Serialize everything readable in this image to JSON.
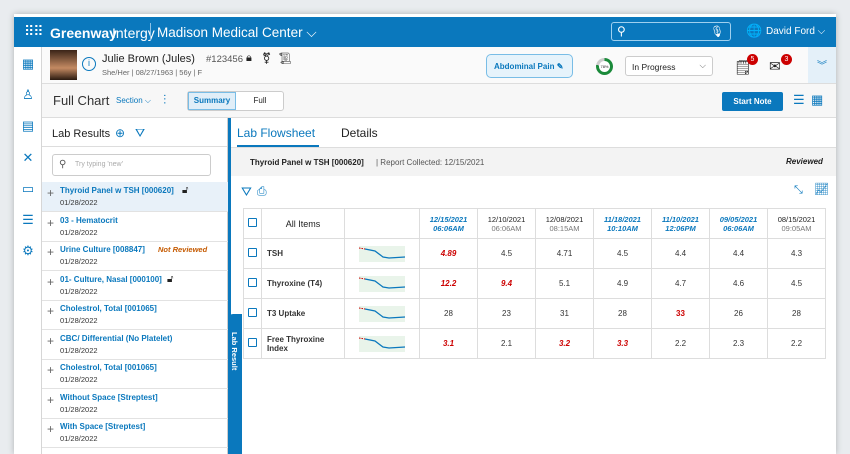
{
  "topbar": {
    "brand_bold": "Greenway",
    "brand_light": "Intergy",
    "practice": "Madison Medical Center",
    "user": "David Ford"
  },
  "patient": {
    "name": "Julie Brown (Jules)",
    "id": "#123456",
    "details": "She/Her | 08/27/1963 | 56y | F",
    "complaint": "Abdominal Pain",
    "progress": "78%",
    "status": "In Progress",
    "notes_badge": "5",
    "messages_badge": "3"
  },
  "toolbar": {
    "title": "Full Chart",
    "section": "Section",
    "summary": "Summary",
    "full": "Full",
    "start_note": "Start Note"
  },
  "left": {
    "title": "Lab Results",
    "search_placeholder": "Try typing 'new'",
    "items": [
      {
        "title": "Thyroid Panel w TSH [000620]",
        "date": "01/28/2022",
        "lock": true
      },
      {
        "title": "03 - Hematocrit",
        "date": "01/28/2022"
      },
      {
        "title": "Urine Culture [008847]",
        "date": "01/28/2022",
        "status": "Not Reviewed"
      },
      {
        "title": "01- Culture, Nasal [000100]",
        "date": "01/28/2022",
        "lock": true
      },
      {
        "title": "Cholestrol, Total [001065]",
        "date": "01/28/2022"
      },
      {
        "title": "CBC/ Differential (No Platelet)",
        "date": "01/28/2022"
      },
      {
        "title": "Cholestrol, Total [001065]",
        "date": "01/28/2022"
      },
      {
        "title": "Without Space [Streptest]",
        "date": "01/28/2022"
      },
      {
        "title": "With Space [Streptest]",
        "date": "01/28/2022"
      }
    ]
  },
  "side_tab": "Lab Result",
  "main": {
    "tabs": [
      "Lab Flowsheet",
      "Details"
    ],
    "panel": "Thyroid Panel w TSH [000620]",
    "collected": "| Report Collected: 12/15/2021",
    "reviewed": "Reviewed",
    "all_items": "All Items",
    "dates": [
      {
        "d": "12/15/2021",
        "t": "06:06AM",
        "hl": true
      },
      {
        "d": "12/10/2021",
        "t": "06:06AM"
      },
      {
        "d": "12/08/2021",
        "t": "08:15AM"
      },
      {
        "d": "11/18/2021",
        "t": "10:10AM",
        "hl": true
      },
      {
        "d": "11/10/2021",
        "t": "12:06PM",
        "hl": true
      },
      {
        "d": "09/05/2021",
        "t": "06:06AM",
        "hl": true
      },
      {
        "d": "08/15/2021",
        "t": "09:05AM"
      }
    ],
    "rows": [
      {
        "name": "TSH",
        "values": [
          "4.89",
          "4.5",
          "4.71",
          "4.5",
          "4.4",
          "4.4",
          "4.3"
        ],
        "flag": [
          1,
          0,
          0,
          0,
          0,
          0,
          0
        ]
      },
      {
        "name": "Thyroxine (T4)",
        "values": [
          "12.2",
          "9.4",
          "5.1",
          "4.9",
          "4.7",
          "4.6",
          "4.5"
        ],
        "flag": [
          1,
          1,
          0,
          0,
          0,
          0,
          0
        ]
      },
      {
        "name": "T3 Uptake",
        "values": [
          "28",
          "23",
          "31",
          "28",
          "33",
          "26",
          "28"
        ],
        "flag": [
          0,
          0,
          0,
          0,
          2,
          0,
          0
        ]
      },
      {
        "name": "Free Thyroxine Index",
        "values": [
          "3.1",
          "2.1",
          "3.2",
          "3.3",
          "2.2",
          "2.3",
          "2.2"
        ],
        "flag": [
          1,
          0,
          1,
          1,
          0,
          0,
          0
        ]
      }
    ]
  }
}
